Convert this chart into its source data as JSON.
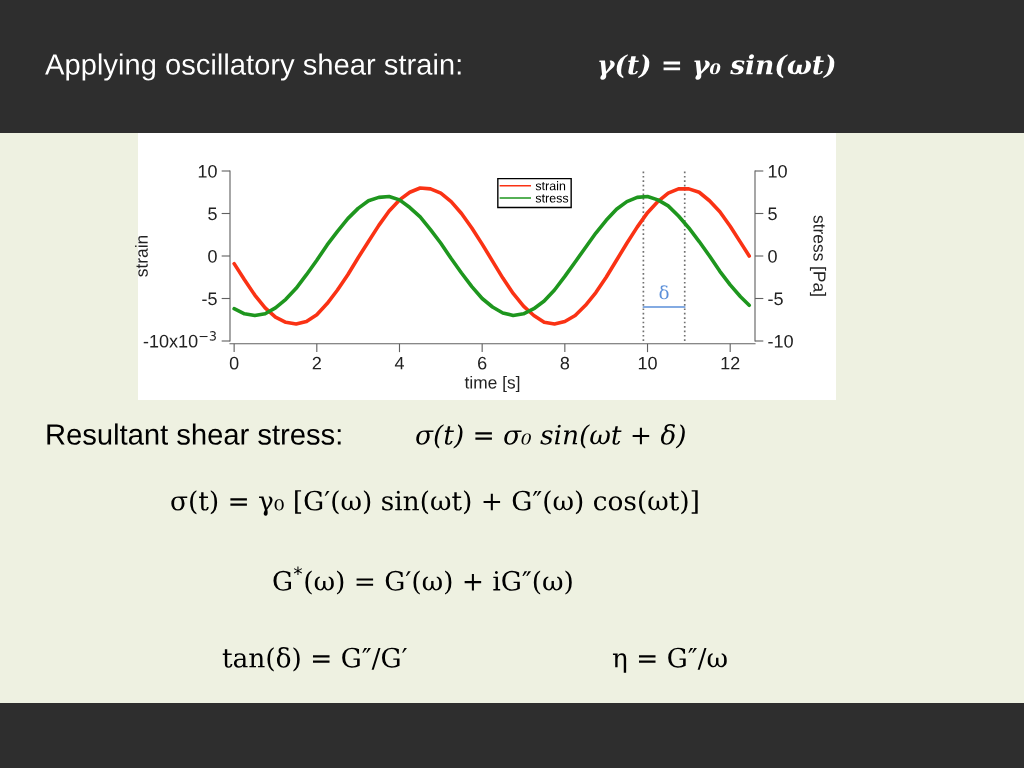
{
  "chart_data": {
    "type": "line",
    "title": "Applying oscillatory shear strain:",
    "xlabel": "time [s]",
    "ylabel": "strain",
    "y2label": "stress [Pa]",
    "x": [
      0,
      0.25,
      0.5,
      0.75,
      1,
      1.25,
      1.5,
      1.75,
      2,
      2.25,
      2.5,
      2.75,
      3,
      3.25,
      3.5,
      3.75,
      4,
      4.25,
      4.5,
      4.75,
      5,
      5.25,
      5.5,
      5.75,
      6,
      6.25,
      6.5,
      6.75,
      7,
      7.25,
      7.5,
      7.75,
      8,
      8.25,
      8.5,
      8.75,
      9,
      9.25,
      9.5,
      9.75,
      10,
      10.25,
      10.5,
      10.75,
      11,
      11.25,
      11.5,
      11.75,
      12,
      12.25,
      12.46
    ],
    "series": [
      {
        "name": "strain",
        "color": "#fa3214",
        "values": [
          -0.9,
          -2.8,
          -4.6,
          -6.1,
          -7.2,
          -7.8,
          -8.0,
          -7.7,
          -6.9,
          -5.6,
          -4.0,
          -2.2,
          -0.2,
          1.7,
          3.6,
          5.3,
          6.6,
          7.5,
          8.0,
          7.9,
          7.4,
          6.4,
          5.0,
          3.3,
          1.4,
          -0.6,
          -2.6,
          -4.4,
          -5.9,
          -7.0,
          -7.8,
          -8.0,
          -7.7,
          -7.0,
          -5.8,
          -4.3,
          -2.5,
          -0.5,
          1.5,
          3.4,
          5.1,
          6.4,
          7.4,
          7.9,
          7.9,
          7.5,
          6.5,
          5.2,
          3.5,
          1.6,
          0.0
        ]
      },
      {
        "name": "stress",
        "color": "#1e961e",
        "values": [
          -6.2,
          -6.8,
          -7.0,
          -6.8,
          -6.1,
          -5.1,
          -3.8,
          -2.2,
          -0.5,
          1.3,
          2.9,
          4.4,
          5.6,
          6.5,
          6.9,
          7.0,
          6.6,
          5.7,
          4.6,
          3.1,
          1.5,
          -0.3,
          -2.0,
          -3.6,
          -5.0,
          -6.0,
          -6.7,
          -7.0,
          -6.8,
          -6.2,
          -5.3,
          -4.0,
          -2.4,
          -0.7,
          1.0,
          2.7,
          4.2,
          5.5,
          6.4,
          6.9,
          7.0,
          6.6,
          5.9,
          4.7,
          3.3,
          1.7,
          0.0,
          -1.8,
          -3.4,
          -4.8,
          -5.8
        ]
      },
      {
        "type": "line",
        "color": "#5b8fd9",
        "x": [
          9.9,
          10.9
        ],
        "values": [
          -6.0,
          -6.0
        ]
      }
    ],
    "xlim": [
      -0.1,
      12.6
    ],
    "xticks": [
      0,
      2,
      4,
      6,
      8,
      10,
      12
    ],
    "ylim": [
      -10,
      10
    ],
    "yticks": [
      {
        "value": -10,
        "label": null
      },
      -5,
      0,
      5,
      10
    ],
    "y2lim": [
      -10,
      10
    ],
    "y2ticks": [
      -10,
      -5,
      0,
      5,
      10
    ],
    "legend": "top",
    "ref_lines": [
      {
        "axis": "x",
        "value": 9.9,
        "color": "#707070",
        "line_style": "dotted"
      },
      {
        "axis": "x",
        "value": 10.9,
        "color": "#707070",
        "line_style": "dotted"
      }
    ],
    "annotations": [
      "γ(t) = γ₀ sin(ωt)",
      "Resultant shear stress:",
      "σ(t) = σ₀ sin(ωt + δ)",
      "σ(t) = γ₀ [G′(ω) sin(ωt) + G″(ω) cos(ωt)]",
      "G$^{*}$(ω) = G′(ω) + iG″(ω)",
      "tan(δ) = G″/G′",
      "η = G″/ω",
      "-10x10$^{−3}$",
      {
        "text": "δ",
        "x": 10.4,
        "y": -6.0
      }
    ]
  }
}
